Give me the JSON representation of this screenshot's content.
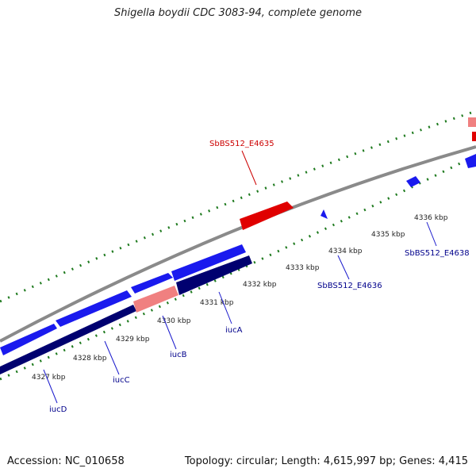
{
  "header": {
    "title": "Shigella boydii CDC 3083-94, complete genome"
  },
  "footer": {
    "accession": "Accession: NC_010658",
    "summary": "Topology: circular; Length: 4,615,997 bp; Genes: 4,415"
  },
  "colors": {
    "backbone": "#8a8a8a",
    "tick": "#1e7a1e",
    "forward_gene": "#1a1aee",
    "reverse_gene": "#e00000",
    "forward_cds": "#000070",
    "light_red": "#f08080",
    "forward_label": "#00008b",
    "reverse_label": "#cc0000"
  },
  "scale_ticks": [
    "4327 kbp",
    "4328 kbp",
    "4329 kbp",
    "4330 kbp",
    "4331 kbp",
    "4332 kbp",
    "4333 kbp",
    "4334 kbp",
    "4335 kbp",
    "4336 kbp"
  ],
  "gene_labels": {
    "iucD": "iucD",
    "iucC": "iucC",
    "iucB": "iucB",
    "iucA": "iucA",
    "e4636": "SbBS512_E4636",
    "e4638": "SbBS512_E4638",
    "e4635": "SbBS512_E4635"
  }
}
